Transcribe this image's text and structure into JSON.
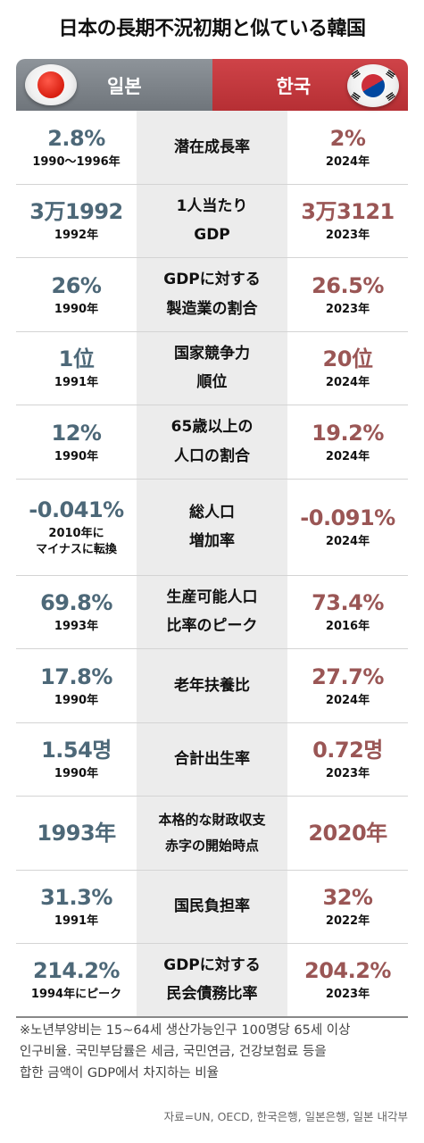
{
  "title": "日本の長期不況初期と似ている韓国",
  "header": {
    "japan_label": "일본",
    "korea_label": "한국",
    "japan_flag_icon": "japan-flag-icon",
    "korea_flag_icon": "korea-flag-icon"
  },
  "colors": {
    "japan_value": "#4d6878",
    "korea_value": "#9a5655",
    "japan_header": "#7d838a",
    "korea_header": "#c23a3f"
  },
  "rows": [
    {
      "label": [
        "潜在成長率"
      ],
      "jp_value": "2.8%",
      "jp_year": "1990〜1996年",
      "kr_value": "2%",
      "kr_year": "2024年"
    },
    {
      "label": [
        "1人当たり",
        "GDP"
      ],
      "jp_value": "3万1992",
      "jp_year": "1992年",
      "kr_value": "3万3121",
      "kr_year": "2023年"
    },
    {
      "label": [
        "GDPに対する",
        "製造業の割合"
      ],
      "jp_value": "26%",
      "jp_year": "1990年",
      "kr_value": "26.5%",
      "kr_year": "2023年"
    },
    {
      "label": [
        "国家競争力",
        "順位"
      ],
      "jp_value": "1位",
      "jp_year": "1991年",
      "kr_value": "20位",
      "kr_year": "2024年"
    },
    {
      "label": [
        "65歳以上の",
        "人口の割合"
      ],
      "jp_value": "12%",
      "jp_year": "1990年",
      "kr_value": "19.2%",
      "kr_year": "2024年"
    },
    {
      "label": [
        "総人口",
        "増加率"
      ],
      "jp_value": "-0.041%",
      "jp_year": "2010年に",
      "jp_year2": "マイナスに転換",
      "kr_value": "-0.091%",
      "kr_year": "2024年"
    },
    {
      "label": [
        "生産可能人口",
        "比率のピーク"
      ],
      "jp_value": "69.8%",
      "jp_year": "1993年",
      "kr_value": "73.4%",
      "kr_year": "2016年"
    },
    {
      "label": [
        "老年扶養比"
      ],
      "jp_value": "17.8%",
      "jp_year": "1990年",
      "kr_value": "27.7%",
      "kr_year": "2024年"
    },
    {
      "label": [
        "合計出生率"
      ],
      "jp_value": "1.54명",
      "jp_year": "1990年",
      "kr_value": "0.72명",
      "kr_year": "2023年"
    },
    {
      "label": [
        "本格的な財政収支",
        "赤字の開始時点"
      ],
      "jp_value": "1993年",
      "jp_year": "",
      "kr_value": "2020年",
      "kr_year": ""
    },
    {
      "label": [
        "国民負担率"
      ],
      "jp_value": "31.3%",
      "jp_year": "1991年",
      "kr_value": "32%",
      "kr_year": "2022年"
    },
    {
      "label": [
        "GDPに対する",
        "民会債務比率"
      ],
      "jp_value": "214.2%",
      "jp_year": "1994年にピーク",
      "kr_value": "204.2%",
      "kr_year": "2023年"
    }
  ],
  "note": [
    "※노년부양비는 15~64세 생산가능인구 100명당 65세 이상",
    "인구비율. 국민부담률은 세금, 국민연금, 건강보험료 등을",
    "합한 금액이 GDP에서 차지하는 비율"
  ],
  "source": "자료=UN, OECD, 한국은행, 일본은행, 일본 내각부"
}
